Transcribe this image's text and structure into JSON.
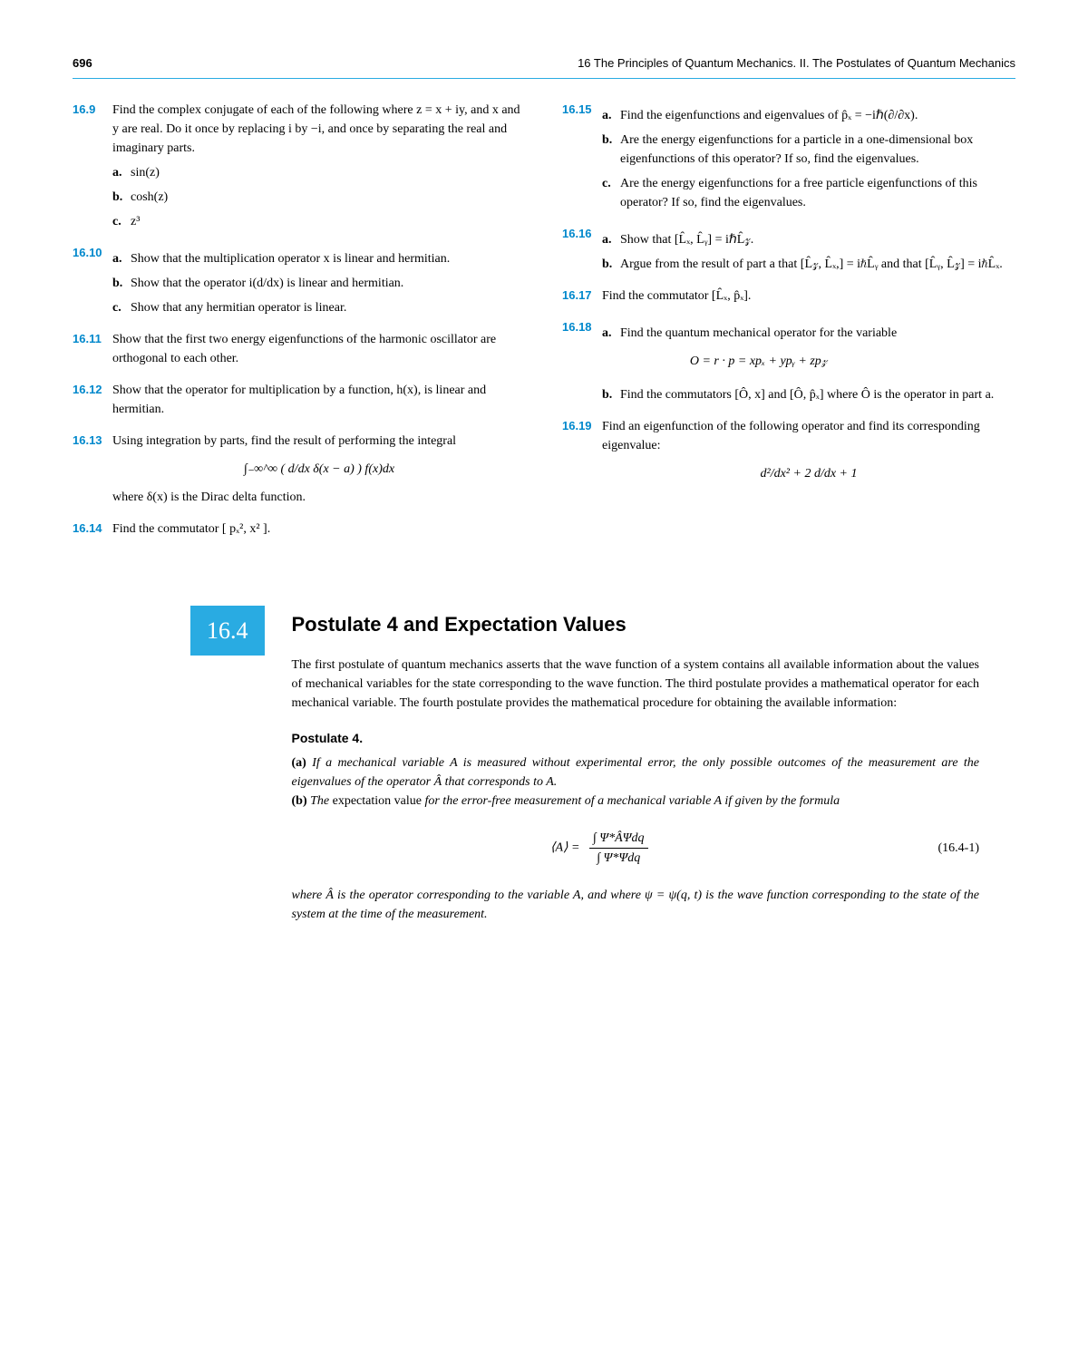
{
  "header": {
    "page": "696",
    "chapter": "16   The Principles of Quantum Mechanics. II. The Postulates of Quantum Mechanics"
  },
  "leftCol": [
    {
      "num": "16.9",
      "text": "Find the complex conjugate of each of the following where z = x + iy, and x and y are real. Do it once by replacing i by −i, and once by separating the real and imaginary parts.",
      "subs": [
        {
          "label": "a.",
          "text": "sin(z)"
        },
        {
          "label": "b.",
          "text": "cosh(z)"
        },
        {
          "label": "c.",
          "text": "z³"
        }
      ]
    },
    {
      "num": "16.10",
      "subs": [
        {
          "label": "a.",
          "text": "Show that the multiplication operator x is linear and hermitian."
        },
        {
          "label": "b.",
          "text": "Show that the operator i(d/dx) is linear and hermitian."
        },
        {
          "label": "c.",
          "text": "Show that any hermitian operator is linear."
        }
      ]
    },
    {
      "num": "16.11",
      "text": "Show that the first two energy eigenfunctions of the harmonic oscillator are orthogonal to each other."
    },
    {
      "num": "16.12",
      "text": "Show that the operator for multiplication by a function, h(x), is linear and hermitian."
    },
    {
      "num": "16.13",
      "text": "Using integration by parts, find the result of performing the integral",
      "eq": "∫₋∞^∞ ( d/dx δ(x − a) ) f(x)dx",
      "after": "where δ(x) is the Dirac delta function."
    },
    {
      "num": "16.14",
      "text": "Find the commutator [ pₓ², x² ]."
    }
  ],
  "rightCol": [
    {
      "num": "16.15",
      "subs": [
        {
          "label": "a.",
          "text": "Find the eigenfunctions and eigenvalues of p̂ₓ = −iℏ(∂/∂x)."
        },
        {
          "label": "b.",
          "text": "Are the energy eigenfunctions for a particle in a one-dimensional box eigenfunctions of this operator? If so, find the eigenvalues."
        },
        {
          "label": "c.",
          "text": "Are the energy eigenfunctions for a free particle eigenfunctions of this operator? If so, find the eigenvalues."
        }
      ]
    },
    {
      "num": "16.16",
      "subs": [
        {
          "label": "a.",
          "text": "Show that [L̂ₓ, L̂ᵧ] = iℏL̂𝓏."
        },
        {
          "label": "b.",
          "text": "Argue from the result of part a that [L̂𝓏, L̂ₓ,] = iℏL̂ᵧ and that [L̂ᵧ, L̂𝓏] = iℏL̂ₓ."
        }
      ]
    },
    {
      "num": "16.17",
      "text": "Find the commutator [L̂ₓ, p̂ₓ]."
    },
    {
      "num": "16.18",
      "subs": [
        {
          "label": "a.",
          "text": "Find the quantum mechanical operator for the variable",
          "eq": "O = r · p = xpₓ + ypᵧ + zp𝓏"
        },
        {
          "label": "b.",
          "text": "Find the commutators [Ô, x] and [Ô, p̂ₓ] where Ô is the operator in part a."
        }
      ]
    },
    {
      "num": "16.19",
      "text": "Find an eigenfunction of the following operator and find its corresponding eigenvalue:",
      "eq": "d²/dx² + 2 d/dx + 1"
    }
  ],
  "section": {
    "badge": "16.4",
    "title": "Postulate 4 and Expectation Values",
    "para": "The first postulate of quantum mechanics asserts that the wave function of a system contains all available information about the values of mechanical variables for the state corresponding to the wave function. The third postulate provides a mathematical operator for each mechanical variable. The fourth postulate provides the mathematical procedure for obtaining the available information:",
    "postulate_heading": "Postulate 4.",
    "postulate_a": "If a mechanical variable A is measured without experimental error, the only possible outcomes of the measurement are the eigenvalues of the operator Â that corresponds to A.",
    "postulate_b_pre": "The",
    "postulate_b_term": " expectation value ",
    "postulate_b_post": "for the error-free measurement of a mechanical variable A if given by the formula",
    "eq_left": "⟨A⟩  =",
    "eq_top": "∫ Ψ*ÂΨdq",
    "eq_bot": "∫ Ψ*Ψdq",
    "eq_num": "(16.4-1)",
    "closing": "where Â is the operator corresponding to the variable A, and where ψ = ψ(q, t) is the wave function corresponding to the state of the system at the time of the measurement."
  }
}
